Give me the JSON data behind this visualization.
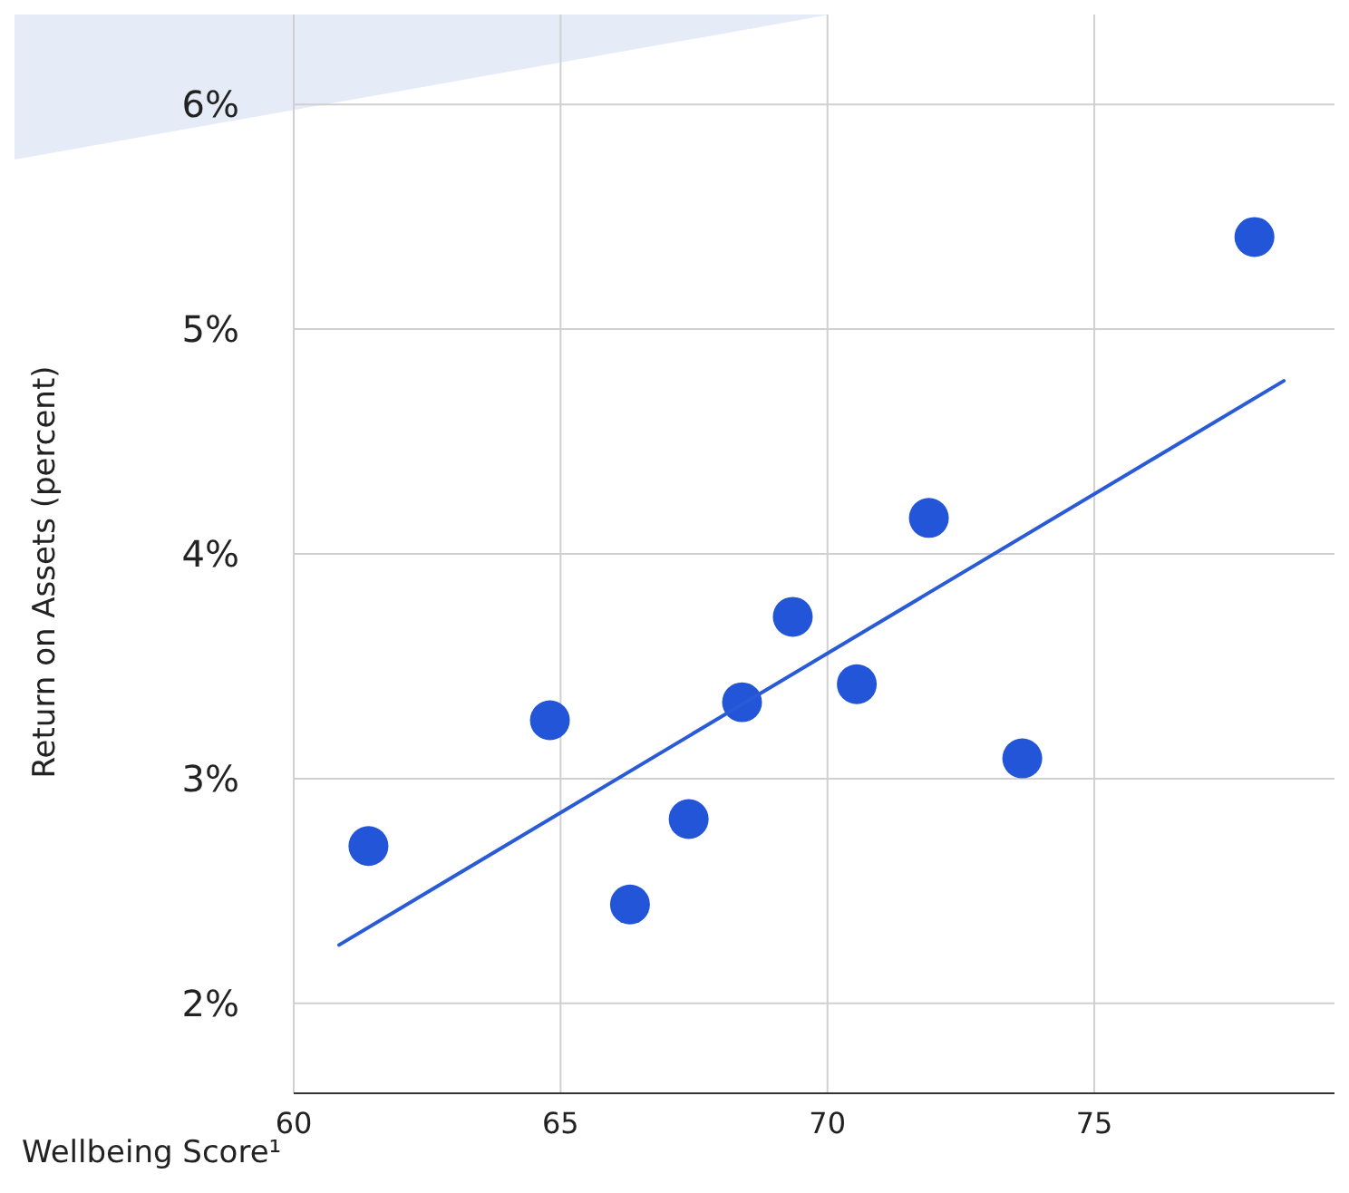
{
  "chart_data": {
    "type": "scatter",
    "xlabel": "Wellbeing Score¹",
    "ylabel": "Return on Assets (percent)",
    "xlim": [
      60,
      79.5
    ],
    "ylim": [
      1.6,
      6.4
    ],
    "xticks": [
      60,
      65,
      70,
      75
    ],
    "yticks": [
      {
        "value": 2,
        "label": "2%"
      },
      {
        "value": 3,
        "label": "3%"
      },
      {
        "value": 4,
        "label": "4%"
      },
      {
        "value": 5,
        "label": "5%"
      },
      {
        "value": 6,
        "label": "6%"
      }
    ],
    "grid": true,
    "marker": "circle",
    "series": [
      {
        "type": "scatter",
        "color": "#2355d8",
        "x": [
          61.4,
          64.8,
          66.3,
          67.4,
          68.4,
          69.35,
          70.55,
          71.9,
          73.65,
          78.0
        ],
        "values": [
          2.7,
          3.26,
          2.44,
          2.82,
          3.34,
          3.72,
          3.42,
          4.16,
          3.09,
          5.41
        ]
      },
      {
        "type": "line",
        "marker": "none",
        "color": "#2a5bd7",
        "x": [
          60.85,
          78.55
        ],
        "values": [
          2.26,
          4.77
        ]
      }
    ]
  }
}
